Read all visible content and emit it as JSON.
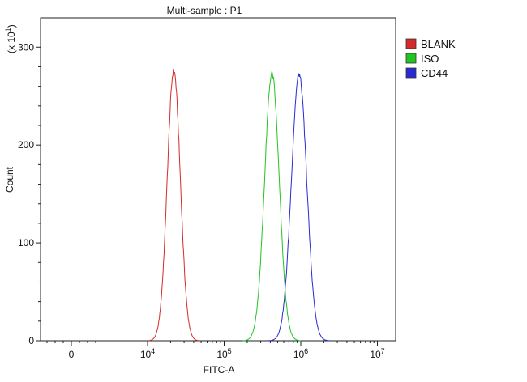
{
  "chart_data": {
    "type": "line",
    "title": "Multi-sample : P1",
    "xlabel": "FITC-A",
    "ylabel": "Count",
    "y_multiplier": "(x 10",
    "y_multiplier_exp": "1",
    "y_multiplier_close": ")",
    "x_scale": "biexponential",
    "x_ticks": [
      {
        "value": 0,
        "base": "0",
        "exp": ""
      },
      {
        "value": 10000,
        "base": "10",
        "exp": "4"
      },
      {
        "value": 100000,
        "base": "10",
        "exp": "5"
      },
      {
        "value": 1000000,
        "base": "10",
        "exp": "6"
      },
      {
        "value": 10000000,
        "base": "10",
        "exp": "7"
      }
    ],
    "y_ticks": [
      0,
      100,
      200,
      300
    ],
    "ylim": [
      0,
      330
    ],
    "grid": false,
    "legend_position": "top-right",
    "series": [
      {
        "name": "BLANK",
        "color": "#d42a2a",
        "peak_x": 22000,
        "peak_y": 276,
        "log_sigma": 0.085
      },
      {
        "name": "ISO",
        "color": "#22c422",
        "peak_x": 420000,
        "peak_y": 273,
        "log_sigma": 0.095
      },
      {
        "name": "CD44",
        "color": "#2a2ad4",
        "peak_x": 950000,
        "peak_y": 272,
        "log_sigma": 0.1
      }
    ]
  }
}
